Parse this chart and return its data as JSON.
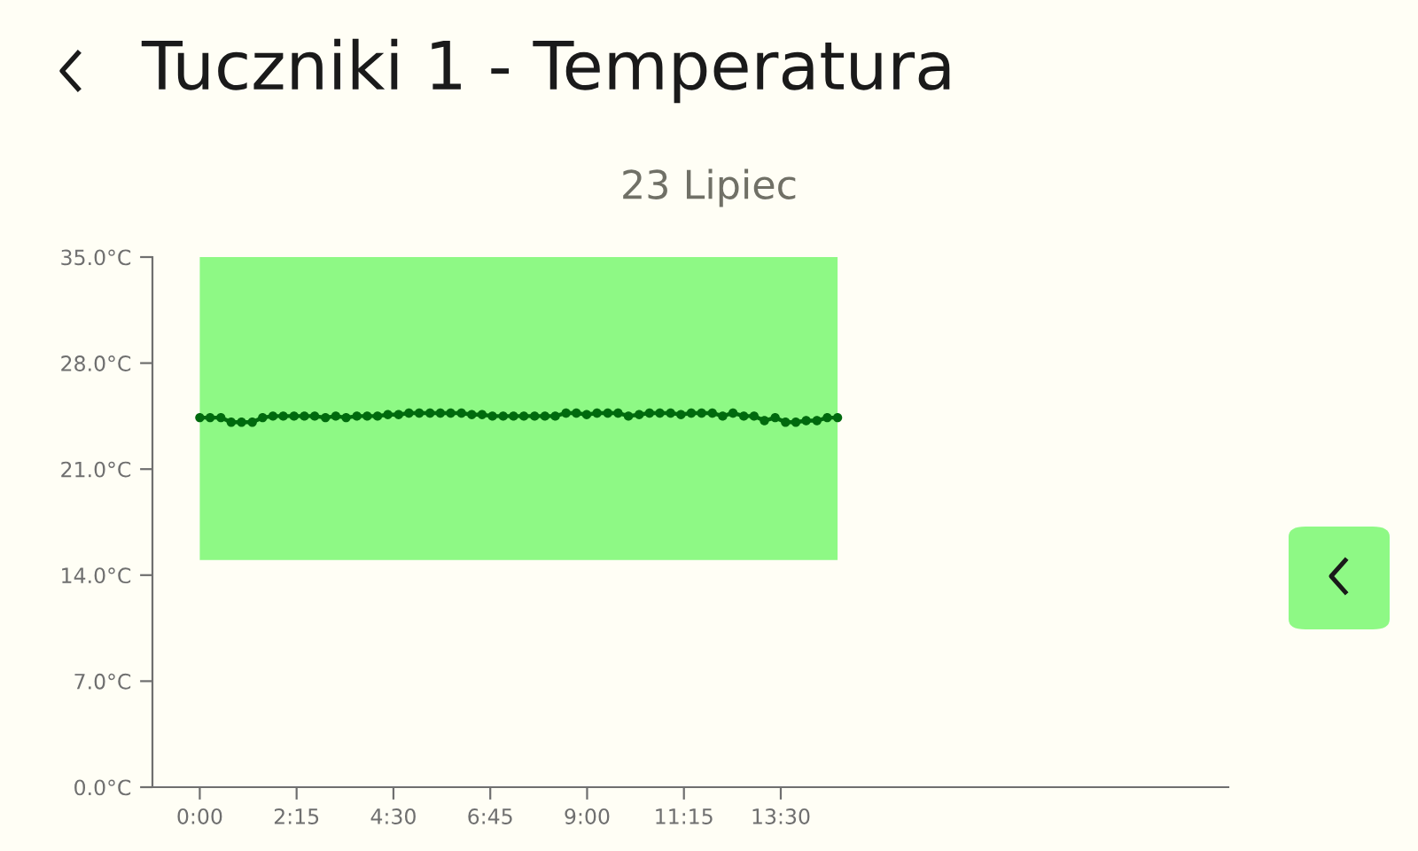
{
  "chart_data": {
    "type": "line",
    "title": "Tuczniki 1 - Temperatura",
    "subtitle": "23 Lipiec",
    "marker": "circle",
    "series": [
      {
        "color": "#006a0e",
        "x": [
          0,
          0.24,
          0.49,
          0.73,
          0.97,
          1.22,
          1.46,
          1.7,
          1.94,
          2.19,
          2.43,
          2.67,
          2.92,
          3.16,
          3.4,
          3.65,
          3.89,
          4.13,
          4.37,
          4.62,
          4.86,
          5.1,
          5.35,
          5.59,
          5.83,
          6.08,
          6.32,
          6.56,
          6.8,
          7.05,
          7.29,
          7.53,
          7.78,
          8.02,
          8.26,
          8.51,
          8.75,
          8.99,
          9.23,
          9.48,
          9.72,
          9.96,
          10.21,
          10.45,
          10.69,
          10.94,
          11.18,
          11.42,
          11.66,
          11.91,
          12.15,
          12.39,
          12.64,
          12.88,
          13.12,
          13.37,
          13.61,
          13.85,
          14.09,
          14.34,
          14.58,
          14.82
        ],
        "values": [
          24.4,
          24.4,
          24.4,
          24.1,
          24.1,
          24.1,
          24.4,
          24.5,
          24.5,
          24.5,
          24.5,
          24.5,
          24.4,
          24.5,
          24.4,
          24.5,
          24.5,
          24.5,
          24.6,
          24.6,
          24.7,
          24.7,
          24.7,
          24.7,
          24.7,
          24.7,
          24.6,
          24.6,
          24.5,
          24.5,
          24.5,
          24.5,
          24.5,
          24.5,
          24.5,
          24.7,
          24.7,
          24.6,
          24.7,
          24.7,
          24.7,
          24.5,
          24.6,
          24.7,
          24.7,
          24.7,
          24.6,
          24.7,
          24.7,
          24.7,
          24.5,
          24.7,
          24.5,
          24.5,
          24.2,
          24.4,
          24.1,
          24.1,
          24.2,
          24.2,
          24.4,
          24.4
        ]
      }
    ],
    "bands": [
      {
        "axis": "y",
        "from": 15,
        "to": 35,
        "color": "#8ef985"
      }
    ],
    "xlim": [
      -1.1,
      23.9
    ],
    "xticks": [
      {
        "value": 0,
        "label": "0:00"
      },
      {
        "value": 2.25,
        "label": "2:15"
      },
      {
        "value": 4.5,
        "label": "4:30"
      },
      {
        "value": 6.75,
        "label": "6:45"
      },
      {
        "value": 9,
        "label": "9:00"
      },
      {
        "value": 11.25,
        "label": "11:15"
      },
      {
        "value": 13.5,
        "label": "13:30"
      }
    ],
    "ylim": [
      0,
      35
    ],
    "yticks": [
      {
        "value": 0,
        "label": "0.0°C"
      },
      {
        "value": 7,
        "label": "7.0°C"
      },
      {
        "value": 14,
        "label": "14.0°C"
      },
      {
        "value": 21,
        "label": "21.0°C"
      },
      {
        "value": 28,
        "label": "28.0°C"
      },
      {
        "value": 35,
        "label": "35.0°C"
      }
    ],
    "grid": false,
    "legend": false,
    "line_style": "solid"
  }
}
